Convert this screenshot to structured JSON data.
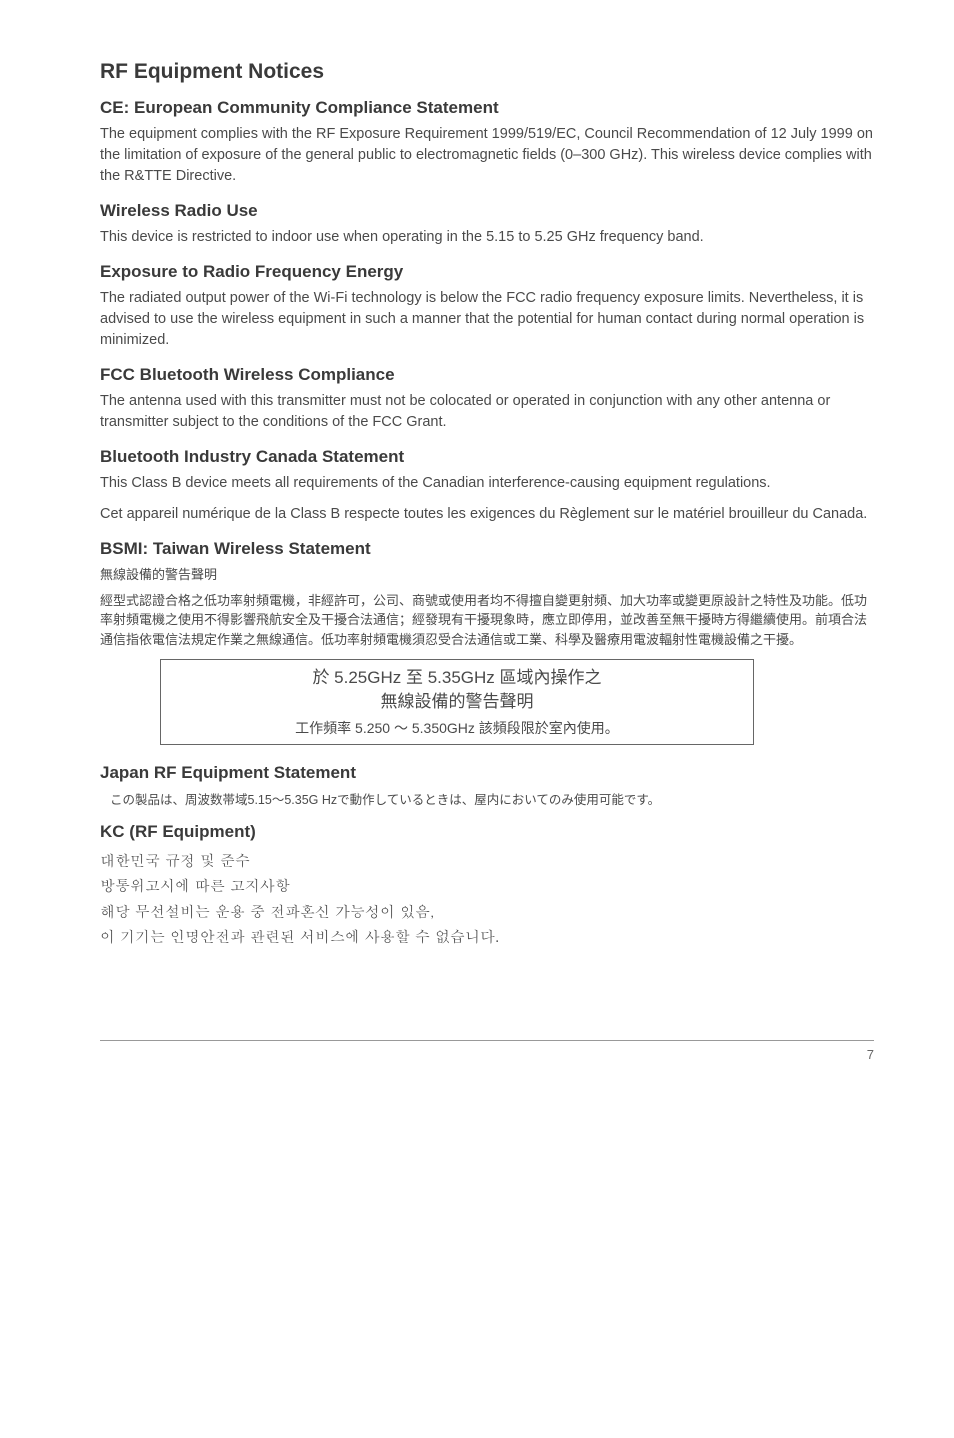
{
  "title": "RF Equipment Notices",
  "sections": {
    "ce": {
      "heading": "CE: European Community Compliance Statement",
      "body": "The equipment complies with the RF Exposure Requirement 1999/519/EC, Council Recommendation of 12 July 1999 on the limitation of exposure of the general public to electromagnetic fields (0–300 GHz). This wireless device complies with the R&TTE Directive."
    },
    "wireless": {
      "heading": "Wireless Radio Use",
      "body": "This device is restricted to indoor use when operating in the 5.15 to 5.25 GHz frequency band."
    },
    "exposure": {
      "heading": "Exposure to Radio Frequency Energy",
      "body": "The radiated output power of the Wi-Fi technology is below the FCC radio frequency exposure limits. Nevertheless, it is advised to use the wireless equipment in such a manner that the potential for human contact during normal operation is minimized."
    },
    "fcc_bt": {
      "heading": "FCC Bluetooth Wireless Compliance",
      "body": "The antenna used with this transmitter must not be colocated or operated in conjunction with any other antenna or transmitter subject to the conditions of the FCC Grant."
    },
    "bt_canada": {
      "heading": "Bluetooth Industry Canada Statement",
      "body1": "This Class B device meets all requirements of the Canadian interference-causing equipment regulations.",
      "body2": "Cet appareil numérique de la Class B respecte toutes les exigences du Règlement sur le matériel brouilleur du Canada."
    },
    "bsmi": {
      "heading": "BSMI: Taiwan Wireless Statement",
      "cjk_title": "無線設備的警告聲明",
      "cjk_body": "經型式認證合格之低功率射頻電機，非經許可，公司、商號或使用者均不得擅自變更射頻、加大功率或變更原設計之特性及功能。低功率射頻電機之使用不得影響飛航安全及干擾合法通信；經發現有干擾現象時，應立即停用，並改善至無干擾時方得繼續使用。前項合法通信指依電信法規定作業之無線通信。低功率射頻電機須忍受合法通信或工業、科學及醫療用電波輻射性電機設備之干擾。",
      "box_line1": "於 5.25GHz 至 5.35GHz 區域內操作之",
      "box_line2": "無線設備的警告聲明",
      "box_sub": "工作頻率 5.250 ～ 5.350GHz 該頻段限於室內使用。"
    },
    "japan": {
      "heading": "Japan RF Equipment Statement",
      "body": "この製品は、周波数帯域5.15～5.35G Hzで動作しているときは、屋内においてのみ使用可能です。"
    },
    "kc": {
      "heading": "KC (RF Equipment)",
      "line1": "대한민국 규정 및 준수",
      "line2": "방통위고시에 따른 고지사항",
      "line3": "해당 무선설비는 운용 중 전파혼신 가능성이 있음,",
      "line4": "이 기기는 인명안전과 관련된 서비스에 사용할 수 없습니다."
    }
  },
  "page_number": "7"
}
